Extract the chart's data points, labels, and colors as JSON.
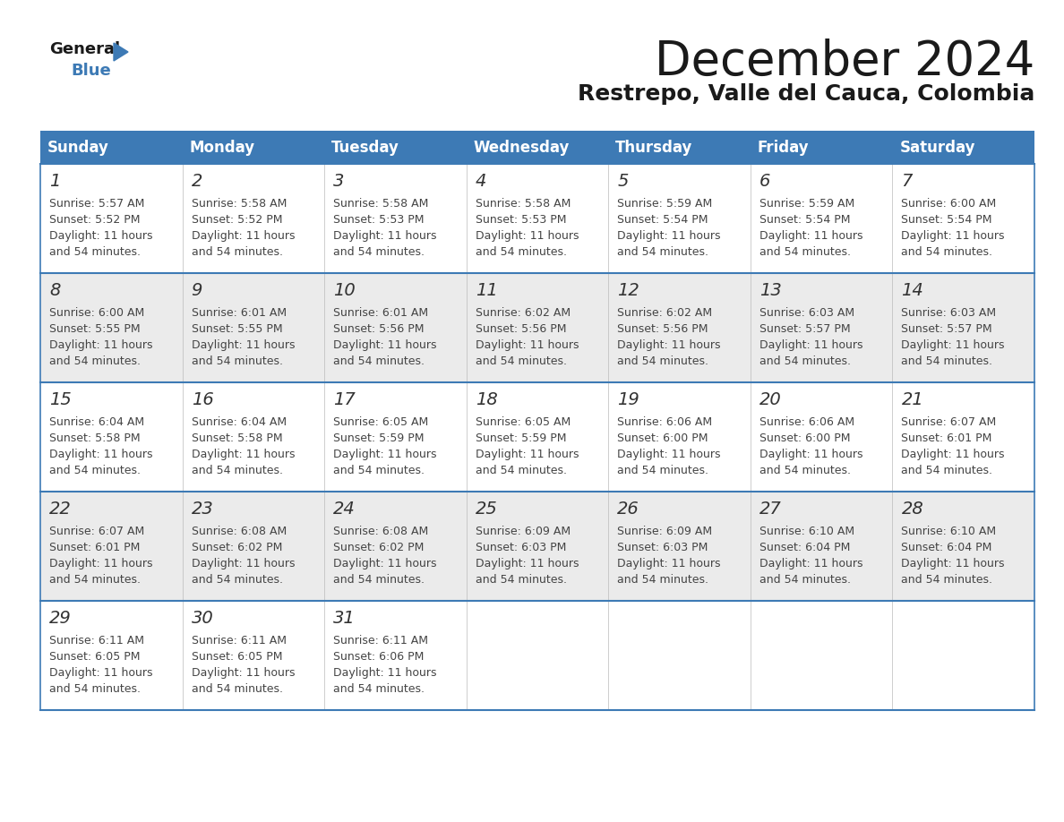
{
  "title": "December 2024",
  "subtitle": "Restrepo, Valle del Cauca, Colombia",
  "days_of_week": [
    "Sunday",
    "Monday",
    "Tuesday",
    "Wednesday",
    "Thursday",
    "Friday",
    "Saturday"
  ],
  "header_bg": "#3d7ab5",
  "header_text": "#ffffff",
  "separator_color": "#3d7ab5",
  "day_num_color": "#333333",
  "text_color": "#444444",
  "bg_white": "#ffffff",
  "bg_gray": "#ebebeb",
  "calendar_data": [
    [
      {
        "day": 1,
        "sunrise": "5:57 AM",
        "sunset": "5:52 PM"
      },
      {
        "day": 2,
        "sunrise": "5:58 AM",
        "sunset": "5:52 PM"
      },
      {
        "day": 3,
        "sunrise": "5:58 AM",
        "sunset": "5:53 PM"
      },
      {
        "day": 4,
        "sunrise": "5:58 AM",
        "sunset": "5:53 PM"
      },
      {
        "day": 5,
        "sunrise": "5:59 AM",
        "sunset": "5:54 PM"
      },
      {
        "day": 6,
        "sunrise": "5:59 AM",
        "sunset": "5:54 PM"
      },
      {
        "day": 7,
        "sunrise": "6:00 AM",
        "sunset": "5:54 PM"
      }
    ],
    [
      {
        "day": 8,
        "sunrise": "6:00 AM",
        "sunset": "5:55 PM"
      },
      {
        "day": 9,
        "sunrise": "6:01 AM",
        "sunset": "5:55 PM"
      },
      {
        "day": 10,
        "sunrise": "6:01 AM",
        "sunset": "5:56 PM"
      },
      {
        "day": 11,
        "sunrise": "6:02 AM",
        "sunset": "5:56 PM"
      },
      {
        "day": 12,
        "sunrise": "6:02 AM",
        "sunset": "5:56 PM"
      },
      {
        "day": 13,
        "sunrise": "6:03 AM",
        "sunset": "5:57 PM"
      },
      {
        "day": 14,
        "sunrise": "6:03 AM",
        "sunset": "5:57 PM"
      }
    ],
    [
      {
        "day": 15,
        "sunrise": "6:04 AM",
        "sunset": "5:58 PM"
      },
      {
        "day": 16,
        "sunrise": "6:04 AM",
        "sunset": "5:58 PM"
      },
      {
        "day": 17,
        "sunrise": "6:05 AM",
        "sunset": "5:59 PM"
      },
      {
        "day": 18,
        "sunrise": "6:05 AM",
        "sunset": "5:59 PM"
      },
      {
        "day": 19,
        "sunrise": "6:06 AM",
        "sunset": "6:00 PM"
      },
      {
        "day": 20,
        "sunrise": "6:06 AM",
        "sunset": "6:00 PM"
      },
      {
        "day": 21,
        "sunrise": "6:07 AM",
        "sunset": "6:01 PM"
      }
    ],
    [
      {
        "day": 22,
        "sunrise": "6:07 AM",
        "sunset": "6:01 PM"
      },
      {
        "day": 23,
        "sunrise": "6:08 AM",
        "sunset": "6:02 PM"
      },
      {
        "day": 24,
        "sunrise": "6:08 AM",
        "sunset": "6:02 PM"
      },
      {
        "day": 25,
        "sunrise": "6:09 AM",
        "sunset": "6:03 PM"
      },
      {
        "day": 26,
        "sunrise": "6:09 AM",
        "sunset": "6:03 PM"
      },
      {
        "day": 27,
        "sunrise": "6:10 AM",
        "sunset": "6:04 PM"
      },
      {
        "day": 28,
        "sunrise": "6:10 AM",
        "sunset": "6:04 PM"
      }
    ],
    [
      {
        "day": 29,
        "sunrise": "6:11 AM",
        "sunset": "6:05 PM"
      },
      {
        "day": 30,
        "sunrise": "6:11 AM",
        "sunset": "6:05 PM"
      },
      {
        "day": 31,
        "sunrise": "6:11 AM",
        "sunset": "6:06 PM"
      },
      null,
      null,
      null,
      null
    ]
  ],
  "title_fontsize": 38,
  "subtitle_fontsize": 18,
  "header_fontsize": 12,
  "day_num_fontsize": 14,
  "cell_text_fontsize": 9
}
